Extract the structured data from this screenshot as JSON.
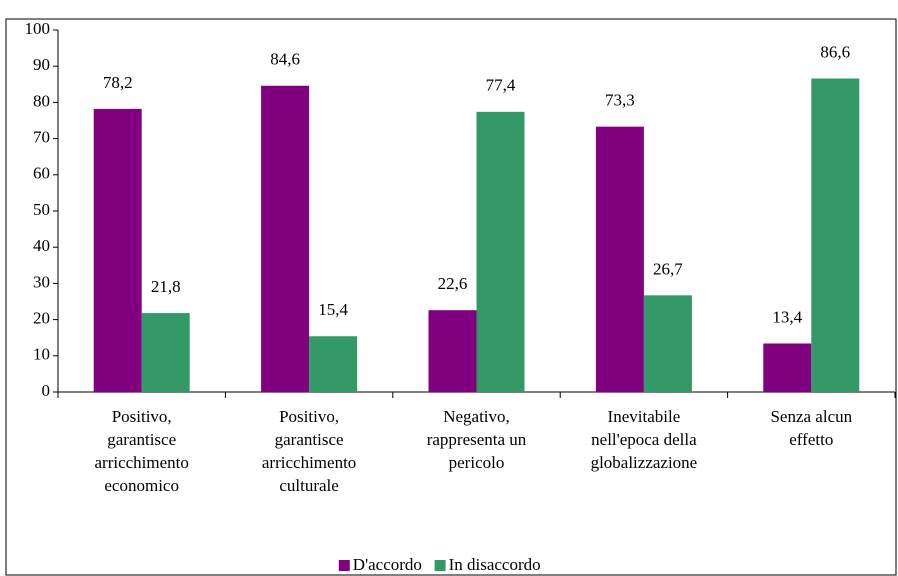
{
  "chart_data": {
    "type": "bar",
    "categories": [
      [
        "Positivo,",
        "garantisce",
        "arricchimento",
        "economico"
      ],
      [
        "Positivo,",
        "garantisce",
        "arricchimento",
        "culturale"
      ],
      [
        "Negativo,",
        "rappresenta un",
        "pericolo"
      ],
      [
        "Inevitabile",
        "nell'epoca della",
        "globalizzazione"
      ],
      [
        "Senza alcun",
        "effetto"
      ]
    ],
    "series": [
      {
        "name": "D'accordo",
        "color": "#800080",
        "values": [
          78.2,
          84.6,
          22.6,
          73.3,
          13.4
        ],
        "value_labels": [
          "78,2",
          "84,6",
          "22,6",
          "73,3",
          "13,4"
        ]
      },
      {
        "name": "In disaccordo",
        "color": "#339966",
        "values": [
          21.8,
          15.4,
          77.4,
          26.7,
          86.6
        ],
        "value_labels": [
          "21,8",
          "15,4",
          "77,4",
          "26,7",
          "86,6"
        ]
      }
    ],
    "ylim": [
      0,
      100
    ],
    "yticks": [
      0,
      10,
      20,
      30,
      40,
      50,
      60,
      70,
      80,
      90,
      100
    ],
    "legend": "bottom"
  }
}
